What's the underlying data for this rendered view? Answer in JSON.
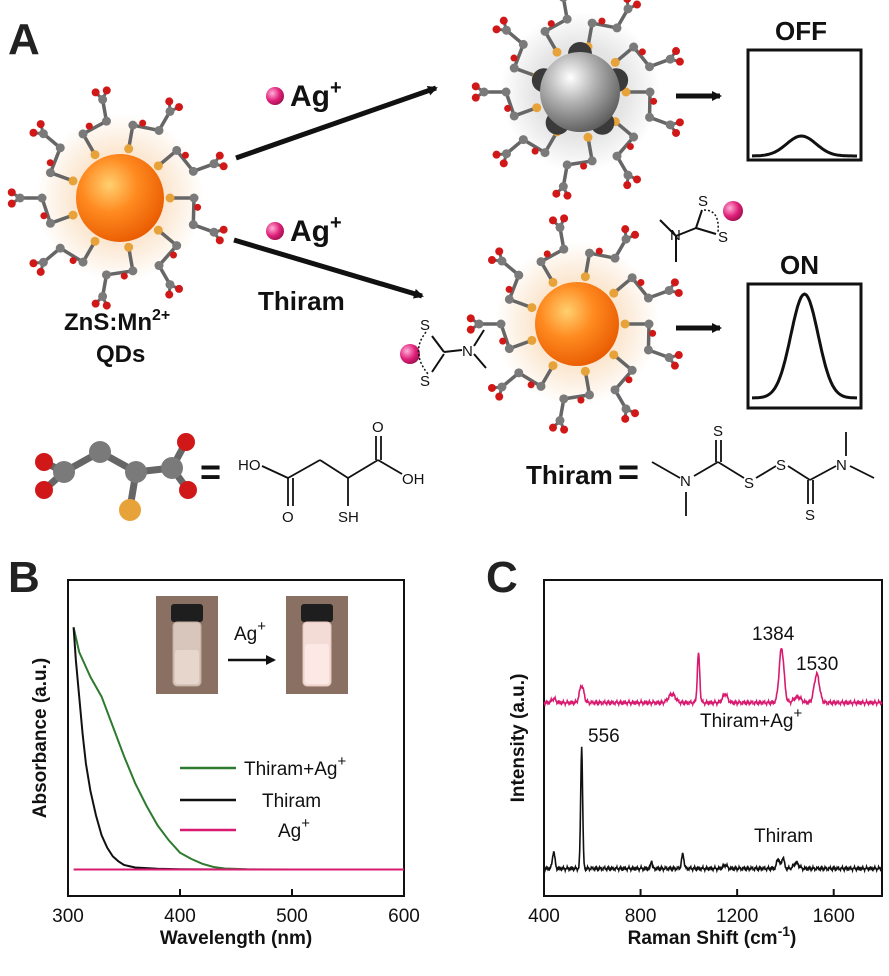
{
  "panels": {
    "a": "A",
    "b": "B",
    "c": "C"
  },
  "scheme": {
    "reagent_top": "Ag",
    "reagent_bottom": "Ag",
    "reagent_bottom_extra": "Thiram",
    "ion_charge": "+",
    "qd_label_line1_main": "ZnS:Mn",
    "qd_label_line1_sup": "2+",
    "qd_label_line2": "QDs",
    "state_off": "OFF",
    "state_on": "ON",
    "thiram_eq_label": "Thiram",
    "equals": "="
  },
  "structures": {
    "mercaptosuccinic": {
      "ho": "HO",
      "oh": "OH",
      "o1": "O",
      "o2": "O",
      "sh": "SH"
    },
    "thiram": {
      "s": "S",
      "n": "N"
    }
  },
  "colors": {
    "qd_core": "#ff7a1a",
    "ag_core": "#9a9a9a",
    "ag_ion": "#e0207a",
    "ligand_c": "#7a7a7a",
    "ligand_o": "#d01818",
    "ligand_s": "#e8a23a",
    "series_green": "#2f7a2f",
    "series_black": "#111111",
    "series_magenta": "#d81b70"
  },
  "chart_b": {
    "type": "line",
    "xlabel": "Wavelength (nm)",
    "ylabel": "Absorbance (a.u.)",
    "xlim": [
      300,
      600
    ],
    "xticks": [
      "300",
      "400",
      "500",
      "600"
    ],
    "inset_reagent": "Ag",
    "inset_charge": "+",
    "series": [
      {
        "name": "Thiram+Ag",
        "name_sup": "+",
        "x": [
          305,
          310,
          320,
          330,
          340,
          350,
          360,
          370,
          380,
          390,
          400,
          410,
          420,
          430,
          440,
          460,
          500,
          550,
          600
        ],
        "y": [
          0.98,
          0.88,
          0.78,
          0.7,
          0.58,
          0.46,
          0.35,
          0.26,
          0.18,
          0.12,
          0.07,
          0.045,
          0.025,
          0.012,
          0.006,
          0.003,
          0.002,
          0.002,
          0.002
        ]
      },
      {
        "name": "Thiram",
        "name_sup": "",
        "x": [
          305,
          307,
          310,
          313,
          316,
          320,
          325,
          330,
          335,
          340,
          345,
          350,
          360,
          380,
          400,
          450,
          500,
          600
        ],
        "y": [
          0.98,
          0.85,
          0.7,
          0.55,
          0.43,
          0.32,
          0.22,
          0.14,
          0.09,
          0.055,
          0.035,
          0.02,
          0.01,
          0.005,
          0.003,
          0.002,
          0.002,
          0.002
        ]
      },
      {
        "name": "Ag",
        "name_sup": "+",
        "x": [
          305,
          400,
          500,
          600
        ],
        "y": [
          0.002,
          0.002,
          0.002,
          0.002
        ]
      }
    ],
    "ylim": [
      0,
      1.05
    ]
  },
  "chart_c": {
    "type": "line",
    "xlabel_main": "Raman Shift (cm",
    "xlabel_sup": "-1",
    "xlabel_end": ")",
    "ylabel": "Intensity (a.u.)",
    "xlim": [
      400,
      1800
    ],
    "xticks": [
      "400",
      "800",
      "1200",
      "1600"
    ],
    "annotations": [
      "1384",
      "1530",
      "556"
    ],
    "series": [
      {
        "name": "Thiram+Ag",
        "name_sup": "+",
        "baseline": 0.62,
        "peaks": [
          [
            440,
            0.015,
            8
          ],
          [
            556,
            0.06,
            9
          ],
          [
            930,
            0.03,
            14
          ],
          [
            1040,
            0.17,
            5
          ],
          [
            1150,
            0.03,
            10
          ],
          [
            1384,
            0.19,
            10
          ],
          [
            1450,
            0.02,
            15
          ],
          [
            1530,
            0.1,
            11
          ]
        ]
      },
      {
        "name": "Thiram",
        "name_sup": "",
        "baseline": 0.04,
        "peaks": [
          [
            440,
            0.06,
            5
          ],
          [
            556,
            0.43,
            4
          ],
          [
            845,
            0.03,
            3
          ],
          [
            975,
            0.05,
            5
          ],
          [
            1150,
            0.012,
            8
          ],
          [
            1370,
            0.035,
            6
          ],
          [
            1390,
            0.04,
            5
          ],
          [
            1445,
            0.02,
            10
          ]
        ]
      }
    ]
  }
}
